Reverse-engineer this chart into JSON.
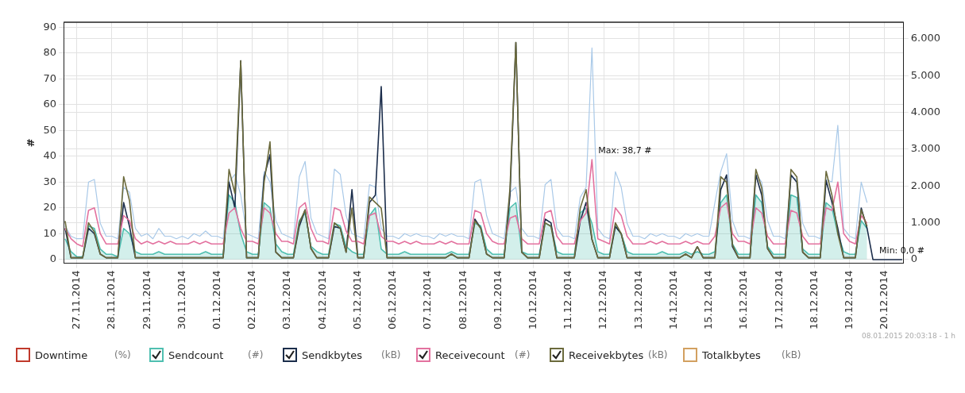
{
  "chart_data": {
    "type": "line",
    "ylabel": "#",
    "legend": "bottom",
    "grid": true,
    "marker": "none",
    "xlim": [
      "2014-11-26T15:00",
      "2014-12-20T13:00"
    ],
    "xticks": [
      {
        "value": "2014-11-27",
        "label": "27.11.2014"
      },
      {
        "value": "2014-11-28",
        "label": "28.11.2014"
      },
      {
        "value": "2014-11-29",
        "label": "29.11.2014"
      },
      {
        "value": "2014-11-30",
        "label": "30.11.2014"
      },
      {
        "value": "2014-12-01",
        "label": "01.12.2014"
      },
      {
        "value": "2014-12-02",
        "label": "02.12.2014"
      },
      {
        "value": "2014-12-03",
        "label": "03.12.2014"
      },
      {
        "value": "2014-12-04",
        "label": "04.12.2014"
      },
      {
        "value": "2014-12-05",
        "label": "05.12.2014"
      },
      {
        "value": "2014-12-06",
        "label": "06.12.2014"
      },
      {
        "value": "2014-12-07",
        "label": "07.12.2014"
      },
      {
        "value": "2014-12-08",
        "label": "08.12.2014"
      },
      {
        "value": "2014-12-09",
        "label": "09.12.2014"
      },
      {
        "value": "2014-12-10",
        "label": "10.12.2014"
      },
      {
        "value": "2014-12-11",
        "label": "11.12.2014"
      },
      {
        "value": "2014-12-12",
        "label": "12.12.2014"
      },
      {
        "value": "2014-12-13",
        "label": "13.12.2014"
      },
      {
        "value": "2014-12-14",
        "label": "14.12.2014"
      },
      {
        "value": "2014-12-15",
        "label": "15.12.2014"
      },
      {
        "value": "2014-12-16",
        "label": "16.12.2014"
      },
      {
        "value": "2014-12-17",
        "label": "17.12.2014"
      },
      {
        "value": "2014-12-18",
        "label": "18.12.2014"
      },
      {
        "value": "2014-12-19",
        "label": "19.12.2014"
      },
      {
        "value": "2014-12-20",
        "label": "20.12.2014"
      }
    ],
    "ylim": [
      -1.5,
      92
    ],
    "yticks": [
      0,
      10,
      20,
      30,
      40,
      50,
      60,
      70,
      80,
      90
    ],
    "y2lim": [
      -100,
      6450
    ],
    "y2ticks": [
      0,
      {
        "value": 1000,
        "label": "1.000"
      },
      {
        "value": 2000,
        "label": "2.000"
      },
      {
        "value": 3000,
        "label": "3.000"
      },
      {
        "value": 4000,
        "label": "4.000"
      },
      {
        "value": 5000,
        "label": "5.000"
      },
      {
        "value": 6000,
        "label": "6.000"
      }
    ],
    "x": [
      "2014-11-26T16:00",
      "2014-11-26T20:00",
      "2014-11-27T00:00",
      "2014-11-27T04:00",
      "2014-11-27T08:00",
      "2014-11-27T12:00",
      "2014-11-27T16:00",
      "2014-11-27T20:00",
      "2014-11-28T00:00",
      "2014-11-28T04:00",
      "2014-11-28T08:00",
      "2014-11-28T12:00",
      "2014-11-28T16:00",
      "2014-11-28T20:00",
      "2014-11-29T00:00",
      "2014-11-29T04:00",
      "2014-11-29T08:00",
      "2014-11-29T12:00",
      "2014-11-29T16:00",
      "2014-11-29T20:00",
      "2014-11-30T00:00",
      "2014-11-30T04:00",
      "2014-11-30T08:00",
      "2014-11-30T12:00",
      "2014-11-30T16:00",
      "2014-11-30T20:00",
      "2014-12-01T00:00",
      "2014-12-01T04:00",
      "2014-12-01T08:00",
      "2014-12-01T12:00",
      "2014-12-01T16:00",
      "2014-12-01T20:00",
      "2014-12-02T00:00",
      "2014-12-02T04:00",
      "2014-12-02T08:00",
      "2014-12-02T12:00",
      "2014-12-02T16:00",
      "2014-12-02T20:00",
      "2014-12-03T00:00",
      "2014-12-03T04:00",
      "2014-12-03T08:00",
      "2014-12-03T12:00",
      "2014-12-03T16:00",
      "2014-12-03T20:00",
      "2014-12-04T00:00",
      "2014-12-04T04:00",
      "2014-12-04T08:00",
      "2014-12-04T12:00",
      "2014-12-04T16:00",
      "2014-12-04T20:00",
      "2014-12-05T00:00",
      "2014-12-05T04:00",
      "2014-12-05T08:00",
      "2014-12-05T12:00",
      "2014-12-05T16:00",
      "2014-12-05T20:00",
      "2014-12-06T00:00",
      "2014-12-06T04:00",
      "2014-12-06T08:00",
      "2014-12-06T12:00",
      "2014-12-06T16:00",
      "2014-12-06T20:00",
      "2014-12-07T00:00",
      "2014-12-07T04:00",
      "2014-12-07T08:00",
      "2014-12-07T12:00",
      "2014-12-07T16:00",
      "2014-12-07T20:00",
      "2014-12-08T00:00",
      "2014-12-08T04:00",
      "2014-12-08T08:00",
      "2014-12-08T12:00",
      "2014-12-08T16:00",
      "2014-12-08T20:00",
      "2014-12-09T00:00",
      "2014-12-09T04:00",
      "2014-12-09T08:00",
      "2014-12-09T12:00",
      "2014-12-09T16:00",
      "2014-12-09T20:00",
      "2014-12-10T00:00",
      "2014-12-10T04:00",
      "2014-12-10T08:00",
      "2014-12-10T12:00",
      "2014-12-10T16:00",
      "2014-12-10T20:00",
      "2014-12-11T00:00",
      "2014-12-11T04:00",
      "2014-12-11T08:00",
      "2014-12-11T12:00",
      "2014-12-11T16:00",
      "2014-12-11T20:00",
      "2014-12-12T00:00",
      "2014-12-12T04:00",
      "2014-12-12T08:00",
      "2014-12-12T12:00",
      "2014-12-12T16:00",
      "2014-12-12T20:00",
      "2014-12-13T00:00",
      "2014-12-13T04:00",
      "2014-12-13T08:00",
      "2014-12-13T12:00",
      "2014-12-13T16:00",
      "2014-12-13T20:00",
      "2014-12-14T00:00",
      "2014-12-14T04:00",
      "2014-12-14T08:00",
      "2014-12-14T12:00",
      "2014-12-14T16:00",
      "2014-12-14T20:00",
      "2014-12-15T00:00",
      "2014-12-15T04:00",
      "2014-12-15T08:00",
      "2014-12-15T12:00",
      "2014-12-15T16:00",
      "2014-12-15T20:00",
      "2014-12-16T00:00",
      "2014-12-16T04:00",
      "2014-12-16T08:00",
      "2014-12-16T12:00",
      "2014-12-16T16:00",
      "2014-12-16T20:00",
      "2014-12-17T00:00",
      "2014-12-17T04:00",
      "2014-12-17T08:00",
      "2014-12-17T12:00",
      "2014-12-17T16:00",
      "2014-12-17T20:00",
      "2014-12-18T00:00",
      "2014-12-18T04:00",
      "2014-12-18T08:00",
      "2014-12-18T12:00",
      "2014-12-18T16:00",
      "2014-12-18T20:00",
      "2014-12-19T00:00",
      "2014-12-19T04:00",
      "2014-12-19T08:00",
      "2014-12-19T12:00",
      "2014-12-19T16:00",
      "2014-12-19T20:00",
      "2014-12-20T00:00",
      "2014-12-20T04:00",
      "2014-12-20T08:00",
      "2014-12-20T12:00"
    ],
    "series": [
      {
        "color": "#a9c9e8",
        "values": [
          13,
          9,
          8,
          8,
          30,
          31,
          14,
          9,
          9,
          8,
          28,
          26,
          12,
          9,
          10,
          8,
          12,
          9,
          9,
          8,
          9,
          8,
          10,
          9,
          11,
          9,
          9,
          8,
          30,
          33,
          25,
          10,
          9,
          8,
          34,
          30,
          15,
          10,
          9,
          8,
          32,
          38,
          16,
          10,
          9,
          8,
          35,
          33,
          17,
          10,
          9,
          8,
          29,
          28,
          12,
          9,
          9,
          8,
          10,
          9,
          10,
          9,
          9,
          8,
          10,
          9,
          10,
          9,
          9,
          8,
          30,
          31,
          17,
          10,
          9,
          8,
          26,
          28,
          12,
          9,
          9,
          8,
          29,
          31,
          12,
          9,
          9,
          8,
          24,
          28,
          82,
          12,
          9,
          8,
          34,
          28,
          14,
          9,
          9,
          8,
          10,
          9,
          10,
          9,
          9,
          8,
          10,
          9,
          10,
          9,
          9,
          22,
          34,
          41,
          15,
          9,
          9,
          8,
          33,
          30,
          15,
          9,
          9,
          8,
          32,
          31,
          14,
          9,
          9,
          8,
          31,
          30,
          52,
          12,
          9,
          8,
          30,
          22,
          null,
          null,
          null,
          null,
          null,
          null
        ]
      },
      {
        "name": "Downtime (%)",
        "color": "#c0392b",
        "values": [
          null,
          null,
          null,
          null,
          null,
          null,
          null,
          null,
          null,
          null,
          null,
          null,
          null,
          null,
          null,
          null,
          null,
          null,
          null,
          null,
          null,
          null,
          null,
          null,
          null,
          null,
          null,
          null,
          null,
          null,
          null,
          null,
          null,
          null,
          null,
          null,
          null,
          null,
          null,
          null,
          null,
          null,
          null,
          null,
          null,
          null,
          null,
          null,
          null,
          null,
          null,
          null,
          null,
          null,
          null,
          null,
          null,
          null,
          null,
          null,
          null,
          null,
          null,
          null,
          null,
          null,
          null,
          null,
          null,
          null,
          null,
          null,
          null,
          null,
          null,
          null,
          null,
          null,
          null,
          null,
          null,
          null,
          null,
          null,
          null,
          null,
          null,
          null,
          null,
          null,
          null,
          null,
          null,
          null,
          null,
          null,
          null,
          null,
          null,
          null,
          null,
          null,
          null,
          null,
          null,
          null,
          null,
          null,
          null,
          null,
          null,
          null,
          null,
          null,
          null,
          null,
          null,
          null,
          null,
          null,
          null,
          null,
          null,
          null,
          null,
          null,
          null,
          null,
          null,
          null,
          null,
          null,
          null,
          null,
          null,
          null,
          null,
          null,
          null,
          null,
          null,
          null,
          null,
          null
        ]
      },
      {
        "name": "Sendcount (#)",
        "type": "area",
        "color": "#4fbfb0",
        "values": [
          8,
          3,
          1,
          1,
          13,
          12,
          4,
          2,
          2,
          1,
          12,
          10,
          3,
          2,
          2,
          2,
          3,
          2,
          2,
          2,
          2,
          2,
          2,
          2,
          3,
          2,
          2,
          2,
          25,
          22,
          10,
          3,
          2,
          2,
          22,
          20,
          6,
          3,
          2,
          2,
          15,
          18,
          5,
          3,
          2,
          2,
          14,
          13,
          5,
          3,
          2,
          2,
          17,
          20,
          4,
          2,
          2,
          2,
          3,
          2,
          2,
          2,
          2,
          2,
          2,
          2,
          3,
          2,
          2,
          2,
          14,
          13,
          4,
          2,
          2,
          2,
          20,
          22,
          3,
          2,
          2,
          2,
          14,
          13,
          3,
          2,
          2,
          2,
          18,
          20,
          14,
          3,
          2,
          2,
          13,
          10,
          3,
          2,
          2,
          2,
          2,
          2,
          3,
          2,
          2,
          2,
          3,
          2,
          3,
          2,
          2,
          3,
          22,
          25,
          6,
          2,
          2,
          2,
          25,
          22,
          5,
          2,
          2,
          2,
          25,
          24,
          4,
          2,
          2,
          2,
          22,
          20,
          10,
          3,
          2,
          2,
          15,
          12,
          null,
          null,
          null,
          null,
          null,
          null
        ]
      },
      {
        "name": "Sendkbytes (kB)",
        "axis": "y2",
        "color": "#1b2d4b",
        "values": [
          850,
          50,
          50,
          50,
          850,
          700,
          150,
          50,
          50,
          50,
          1550,
          900,
          50,
          50,
          50,
          50,
          50,
          50,
          50,
          50,
          50,
          50,
          50,
          50,
          50,
          50,
          50,
          50,
          2100,
          1400,
          5400,
          50,
          50,
          50,
          2250,
          2850,
          200,
          50,
          50,
          50,
          900,
          1350,
          300,
          50,
          50,
          50,
          900,
          850,
          200,
          1900,
          50,
          50,
          1550,
          1750,
          4700,
          50,
          50,
          50,
          50,
          50,
          50,
          50,
          50,
          50,
          50,
          50,
          150,
          50,
          50,
          50,
          1100,
          850,
          150,
          50,
          50,
          50,
          1750,
          5900,
          200,
          50,
          50,
          50,
          1100,
          1000,
          50,
          50,
          50,
          50,
          1050,
          1550,
          550,
          50,
          50,
          50,
          900,
          700,
          50,
          50,
          50,
          50,
          50,
          50,
          50,
          50,
          50,
          50,
          150,
          50,
          350,
          50,
          50,
          50,
          1900,
          2300,
          350,
          50,
          50,
          50,
          2300,
          1750,
          300,
          50,
          50,
          50,
          2300,
          2100,
          200,
          50,
          50,
          50,
          2150,
          1550,
          850,
          50,
          50,
          50,
          1400,
          850,
          0,
          0,
          0,
          0,
          0,
          0
        ]
      },
      {
        "name": "Receivecount (#)",
        "color": "#e3729f",
        "values": [
          12,
          8,
          6,
          5,
          19,
          20,
          10,
          6,
          6,
          6,
          17,
          15,
          8,
          6,
          7,
          6,
          7,
          6,
          7,
          6,
          6,
          6,
          7,
          6,
          7,
          6,
          6,
          6,
          18,
          20,
          12,
          7,
          7,
          6,
          20,
          18,
          10,
          7,
          7,
          6,
          20,
          22,
          12,
          7,
          7,
          6,
          20,
          19,
          11,
          7,
          7,
          6,
          17,
          18,
          9,
          7,
          7,
          6,
          7,
          6,
          7,
          6,
          6,
          6,
          7,
          6,
          7,
          6,
          6,
          6,
          19,
          18,
          10,
          7,
          6,
          6,
          16,
          17,
          8,
          6,
          6,
          6,
          18,
          19,
          9,
          6,
          6,
          6,
          15,
          18,
          38.7,
          8,
          7,
          6,
          20,
          17,
          9,
          6,
          6,
          6,
          7,
          6,
          7,
          6,
          6,
          6,
          7,
          6,
          7,
          6,
          6,
          9,
          20,
          22,
          10,
          7,
          7,
          6,
          20,
          18,
          9,
          6,
          6,
          6,
          19,
          18,
          9,
          6,
          6,
          6,
          20,
          19,
          30,
          10,
          7,
          6,
          17,
          14,
          null,
          null,
          null,
          null,
          null,
          null
        ]
      },
      {
        "name": "Receivekbytes (kB)",
        "axis": "y2",
        "color": "#6b6a3c",
        "values": [
          1050,
          50,
          50,
          50,
          1000,
          750,
          150,
          50,
          50,
          50,
          2250,
          1600,
          50,
          50,
          50,
          50,
          50,
          50,
          50,
          50,
          50,
          50,
          50,
          50,
          50,
          50,
          50,
          50,
          2450,
          1800,
          5400,
          50,
          50,
          50,
          2100,
          3200,
          200,
          50,
          50,
          50,
          1000,
          1350,
          300,
          50,
          50,
          50,
          1000,
          850,
          200,
          1400,
          50,
          50,
          1700,
          1550,
          1400,
          50,
          50,
          50,
          50,
          50,
          50,
          50,
          50,
          50,
          50,
          50,
          150,
          50,
          50,
          50,
          1050,
          850,
          150,
          50,
          50,
          50,
          1950,
          5900,
          200,
          50,
          50,
          50,
          1000,
          900,
          50,
          50,
          50,
          50,
          1400,
          1900,
          550,
          50,
          50,
          50,
          1000,
          700,
          50,
          50,
          50,
          50,
          50,
          50,
          50,
          50,
          50,
          50,
          150,
          50,
          350,
          50,
          50,
          50,
          2250,
          2100,
          400,
          50,
          50,
          50,
          2450,
          1950,
          300,
          50,
          50,
          50,
          2450,
          2250,
          200,
          50,
          50,
          50,
          2400,
          1750,
          700,
          50,
          50,
          50,
          1350,
          900,
          null,
          null,
          null,
          null,
          null,
          null
        ]
      },
      {
        "name": "Totalkbytes (kB)",
        "axis": "y2",
        "color": "#d2a060",
        "values": [
          null,
          null,
          null,
          null,
          null,
          null,
          null,
          null,
          null,
          null,
          null,
          null,
          null,
          null,
          null,
          null,
          null,
          null,
          null,
          null,
          null,
          null,
          null,
          null,
          null,
          null,
          null,
          null,
          null,
          null,
          null,
          null,
          null,
          null,
          null,
          null,
          null,
          null,
          null,
          null,
          null,
          null,
          null,
          null,
          null,
          null,
          null,
          null,
          null,
          null,
          null,
          null,
          null,
          null,
          null,
          null,
          null,
          null,
          null,
          null,
          null,
          null,
          null,
          null,
          null,
          null,
          null,
          null,
          null,
          null,
          null,
          null,
          null,
          null,
          null,
          null,
          null,
          null,
          null,
          null,
          null,
          null,
          null,
          null,
          null,
          null,
          null,
          null,
          null,
          null,
          null,
          null,
          null,
          null,
          null,
          null,
          null,
          null,
          null,
          null,
          null,
          null,
          null,
          null,
          null,
          null,
          null,
          null,
          null,
          null,
          null,
          null,
          null,
          null,
          null,
          null,
          null,
          null,
          null,
          null,
          null,
          null,
          null,
          null,
          null,
          null,
          null,
          null,
          null,
          null,
          null,
          null,
          null,
          null,
          null,
          null,
          null,
          null,
          null,
          null,
          null,
          null,
          null,
          null
        ]
      }
    ],
    "annotations": [
      {
        "text": "Max: 38,7 #",
        "x": "2014-12-11T16:00",
        "y": 38.7
      },
      {
        "text": "Min: 0,0 #",
        "x": "2014-12-19T16:00",
        "y": 0
      },
      "08.01.2015 20:03:18 - 1 h"
    ]
  }
}
